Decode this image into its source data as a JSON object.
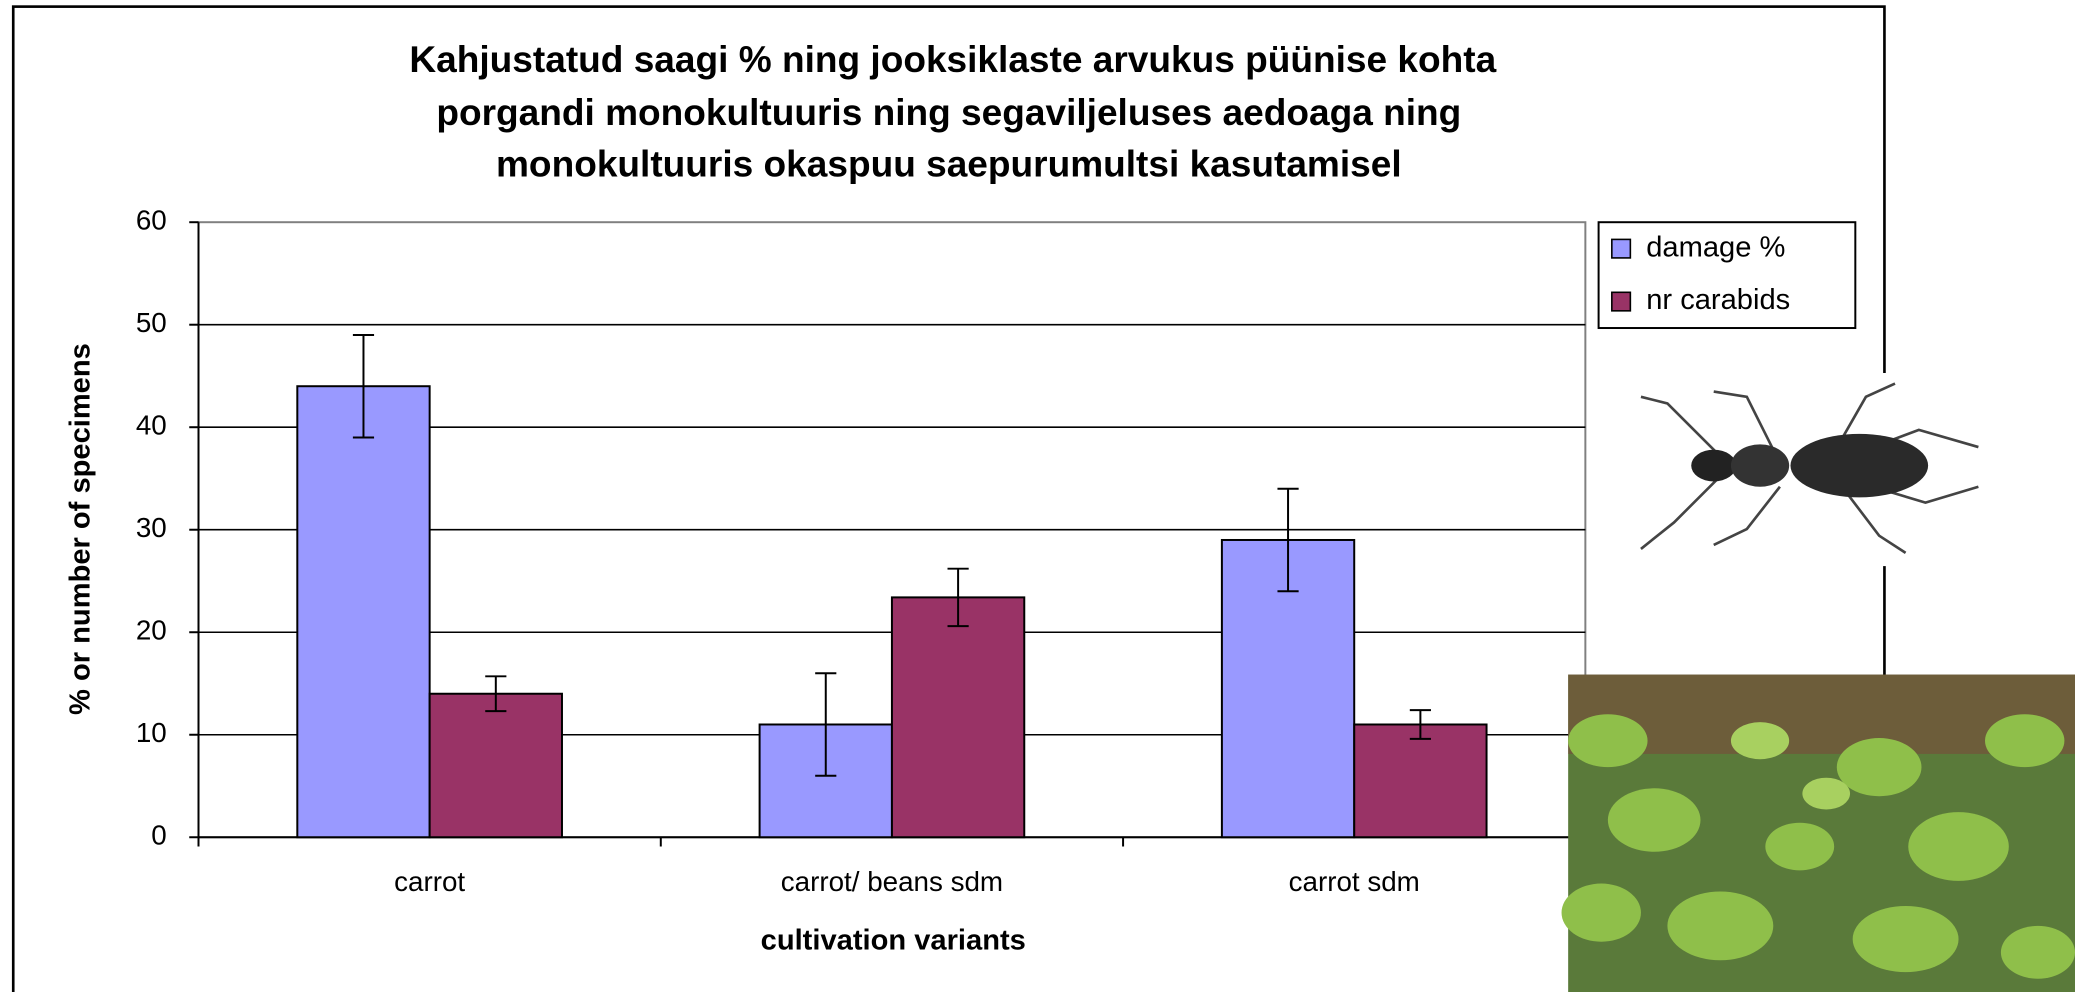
{
  "chart_data": {
    "type": "bar",
    "title": [
      "Kahjustatud saagi % ning jooksiklaste arvukus püünise kohta",
      "porgandi monokultuuris ning segaviljeluses aedoaga ning",
      "monokultuuris okaspuu saepurumultsi kasutamisel"
    ],
    "x_label": "cultivation variants",
    "y_label": "% or number of specimens",
    "categories": [
      "carrot",
      "carrot/ beans sdm",
      "carrot sdm"
    ],
    "series": [
      {
        "name": "damage %",
        "color": "#9999ff",
        "values": [
          44,
          11,
          29
        ],
        "errors": [
          5,
          5,
          5
        ]
      },
      {
        "name": "nr carabids",
        "color": "#993366",
        "values": [
          14,
          23.4,
          11
        ],
        "errors": [
          1.7,
          2.8,
          1.4
        ]
      }
    ],
    "ylim": [
      0,
      60
    ],
    "yticks": [
      0,
      10,
      20,
      30,
      40,
      50,
      60
    ],
    "grid": true,
    "legend": "upper right"
  }
}
